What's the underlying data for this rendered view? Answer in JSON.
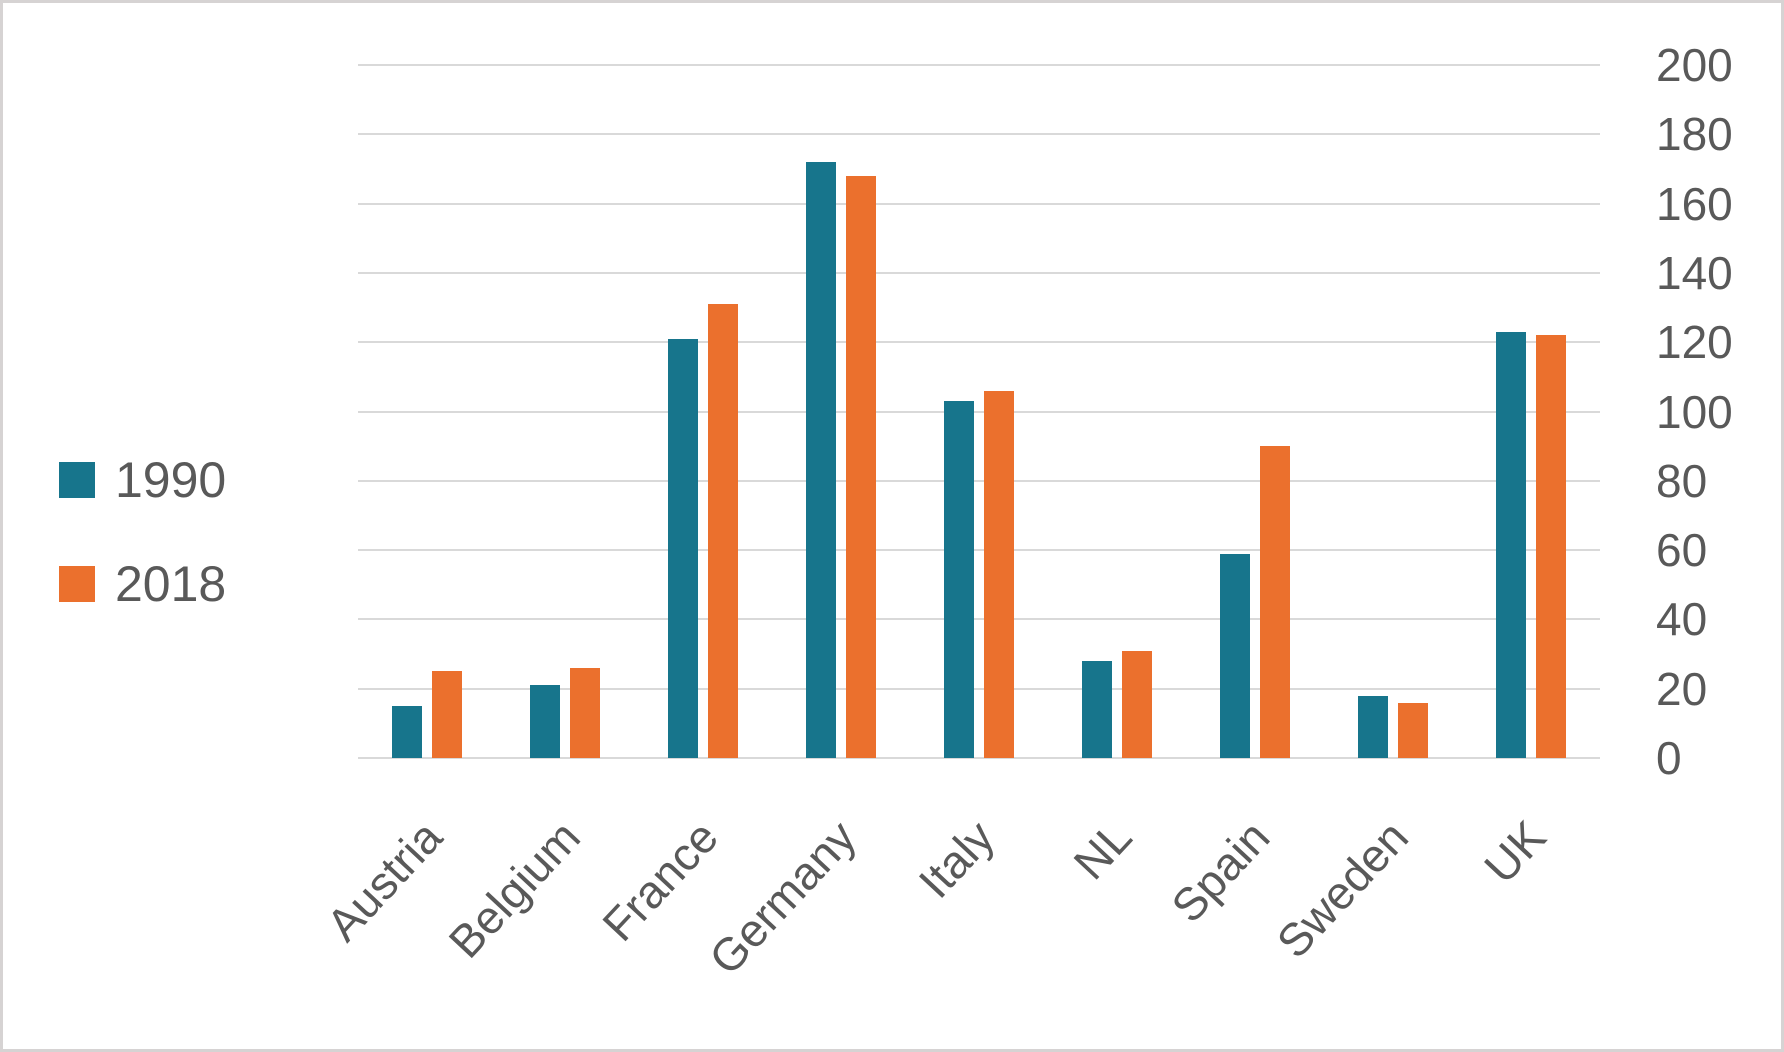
{
  "chart_data": {
    "type": "bar",
    "title": "",
    "xlabel": "",
    "ylabel": "",
    "categories": [
      "Austria",
      "Belgium",
      "France",
      "Germany",
      "Italy",
      "NL",
      "Spain",
      "Sweden",
      "UK"
    ],
    "series": [
      {
        "name": "1990",
        "color": "#17758C",
        "values": [
          15,
          21,
          121,
          172,
          103,
          28,
          59,
          18,
          123
        ]
      },
      {
        "name": "2018",
        "color": "#EB702D",
        "values": [
          25,
          26,
          131,
          168,
          106,
          31,
          90,
          16,
          122
        ]
      }
    ],
    "ylim": [
      0,
      200
    ],
    "ytick_step": 20,
    "yticks": [
      200,
      180,
      160,
      140,
      120,
      100,
      80,
      60,
      40,
      20,
      0
    ],
    "grid": true,
    "axis_side": "right",
    "legend_position": "middle-left",
    "colors": {
      "gridline": "#D9D9D9",
      "text": "#595959",
      "frame": "#D6D3D3",
      "background": "#FFFFFF"
    }
  }
}
